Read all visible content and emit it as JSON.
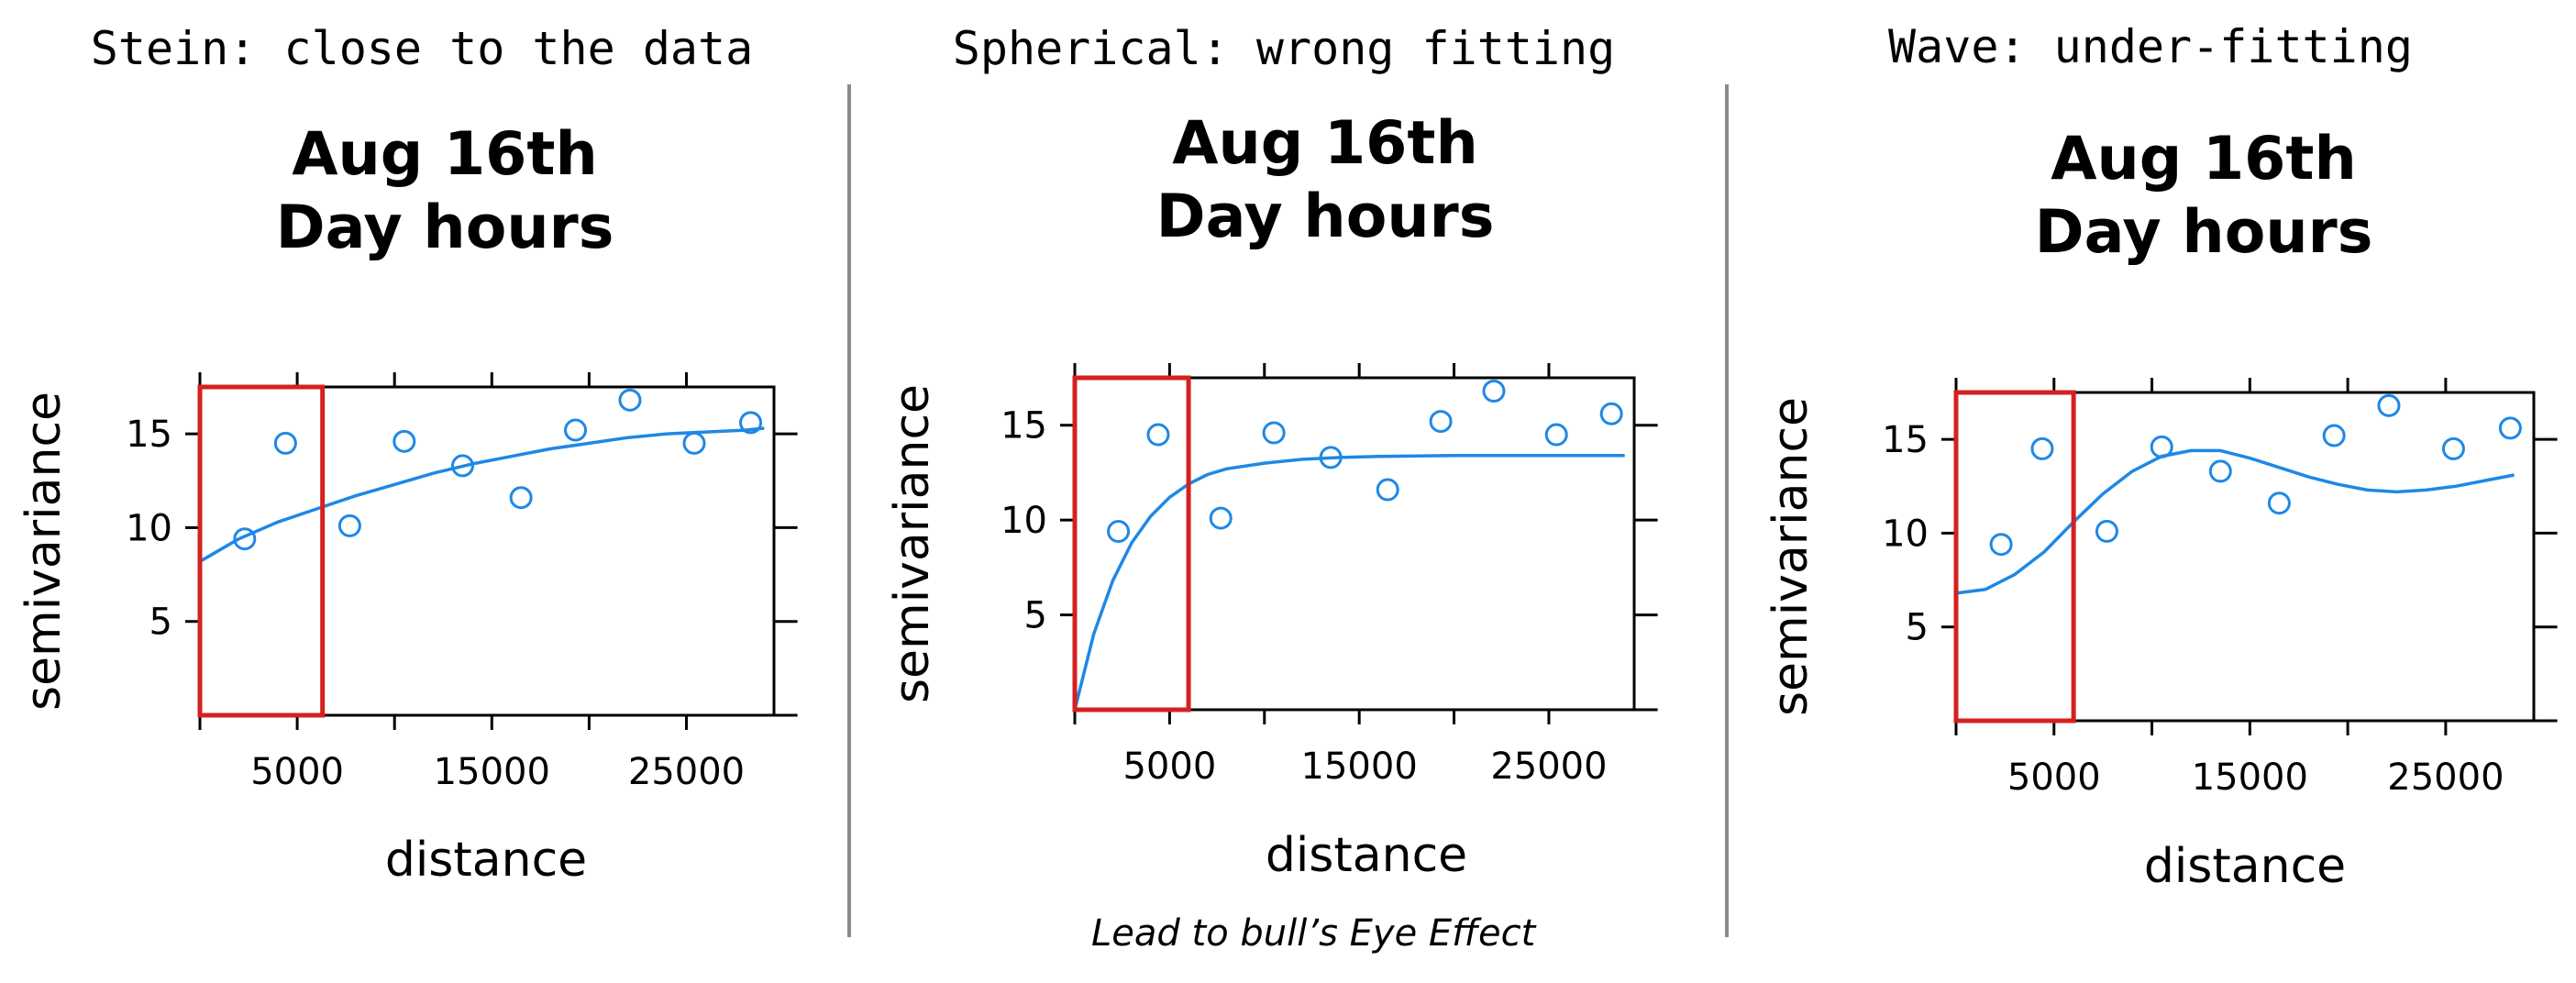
{
  "panels": [
    {
      "heading": "Stein: close to the data"
    },
    {
      "heading": "Spherical: wrong fitting"
    },
    {
      "heading": "Wave: under-fitting"
    }
  ],
  "caption": "Lead to bull’s Eye Effect",
  "colors": {
    "series": "#1e88e5",
    "highlight_box": "#d62020",
    "divider": "#8c8c8c",
    "axis": "#000000"
  },
  "chart_data": [
    {
      "type": "scatter",
      "title": "Aug 16th\nDay hours",
      "xlabel": "distance",
      "ylabel": "semivariance",
      "xlim": [
        0,
        29500
      ],
      "ylim": [
        0,
        17.5
      ],
      "xticks": [
        0,
        5000,
        10000,
        15000,
        20000,
        25000
      ],
      "xtick_labels": [
        "5000",
        "15000",
        "25000"
      ],
      "xtick_label_values": [
        5000,
        15000,
        25000
      ],
      "yticks": [
        5,
        10,
        15
      ],
      "yticks_right": [
        0,
        5,
        10,
        15
      ],
      "grid": false,
      "series": [
        {
          "type": "scatter",
          "x": [
            2300,
            4400,
            7700,
            10500,
            13500,
            16500,
            19300,
            22100,
            25400,
            28300
          ],
          "y": [
            9.4,
            14.5,
            10.1,
            14.6,
            13.3,
            11.6,
            15.2,
            16.8,
            14.5,
            15.6
          ]
        },
        {
          "type": "line",
          "model": "Stein",
          "x": [
            0,
            2000,
            4000,
            6000,
            8000,
            10000,
            12000,
            14000,
            16000,
            18000,
            20000,
            22000,
            24000,
            26000,
            28000,
            29000
          ],
          "y": [
            8.2,
            9.4,
            10.3,
            11.0,
            11.7,
            12.3,
            12.9,
            13.4,
            13.8,
            14.2,
            14.5,
            14.8,
            15.0,
            15.1,
            15.2,
            15.3
          ]
        }
      ],
      "highlight": {
        "x": [
          0,
          6300
        ],
        "y": [
          0,
          17.5
        ]
      }
    },
    {
      "type": "scatter",
      "title": "Aug 16th\nDay hours",
      "xlabel": "distance",
      "ylabel": "semivariance",
      "xlim": [
        0,
        29500
      ],
      "ylim": [
        0,
        17.5
      ],
      "xticks": [
        0,
        5000,
        10000,
        15000,
        20000,
        25000
      ],
      "xtick_labels": [
        "5000",
        "15000",
        "25000"
      ],
      "xtick_label_values": [
        5000,
        15000,
        25000
      ],
      "yticks": [
        5,
        10,
        15
      ],
      "yticks_right": [
        0,
        5,
        10,
        15
      ],
      "grid": false,
      "series": [
        {
          "type": "scatter",
          "x": [
            2300,
            4400,
            7700,
            10500,
            13500,
            16500,
            19300,
            22100,
            25400,
            28300
          ],
          "y": [
            9.4,
            14.5,
            10.1,
            14.6,
            13.3,
            11.6,
            15.2,
            16.8,
            14.5,
            15.6
          ]
        },
        {
          "type": "line",
          "model": "Spherical",
          "x": [
            0,
            1000,
            2000,
            3000,
            4000,
            5000,
            6000,
            7000,
            8000,
            10000,
            12000,
            14000,
            16000,
            20000,
            24000,
            28000,
            29000
          ],
          "y": [
            0,
            4.0,
            6.8,
            8.8,
            10.2,
            11.2,
            11.9,
            12.4,
            12.7,
            13.0,
            13.2,
            13.3,
            13.35,
            13.4,
            13.4,
            13.4,
            13.4
          ]
        }
      ],
      "highlight": {
        "x": [
          0,
          6000
        ],
        "y": [
          0,
          17.5
        ]
      }
    },
    {
      "type": "scatter",
      "title": "Aug 16th\nDay hours",
      "xlabel": "distance",
      "ylabel": "semivariance",
      "xlim": [
        0,
        29500
      ],
      "ylim": [
        0,
        17.5
      ],
      "xticks": [
        0,
        5000,
        10000,
        15000,
        20000,
        25000
      ],
      "xtick_labels": [
        "5000",
        "15000",
        "25000"
      ],
      "xtick_label_values": [
        5000,
        15000,
        25000
      ],
      "yticks": [
        5,
        10,
        15
      ],
      "yticks_right": [
        0,
        5,
        10,
        15
      ],
      "grid": false,
      "series": [
        {
          "type": "scatter",
          "x": [
            2300,
            4400,
            7700,
            10500,
            13500,
            16500,
            19300,
            22100,
            25400,
            28300
          ],
          "y": [
            9.4,
            14.5,
            10.1,
            14.6,
            13.3,
            11.6,
            15.2,
            16.8,
            14.5,
            15.6
          ]
        },
        {
          "type": "line",
          "model": "Wave",
          "x": [
            0,
            1500,
            3000,
            4500,
            6000,
            7500,
            9000,
            10500,
            12000,
            13500,
            15000,
            16500,
            18000,
            19500,
            21000,
            22500,
            24000,
            25500,
            27000,
            28500
          ],
          "y": [
            6.8,
            7.0,
            7.8,
            9.0,
            10.6,
            12.1,
            13.3,
            14.1,
            14.4,
            14.4,
            14.0,
            13.5,
            13.0,
            12.6,
            12.3,
            12.2,
            12.3,
            12.5,
            12.8,
            13.1
          ]
        }
      ],
      "highlight": {
        "x": [
          0,
          6000
        ],
        "y": [
          0,
          17.5
        ]
      }
    }
  ]
}
